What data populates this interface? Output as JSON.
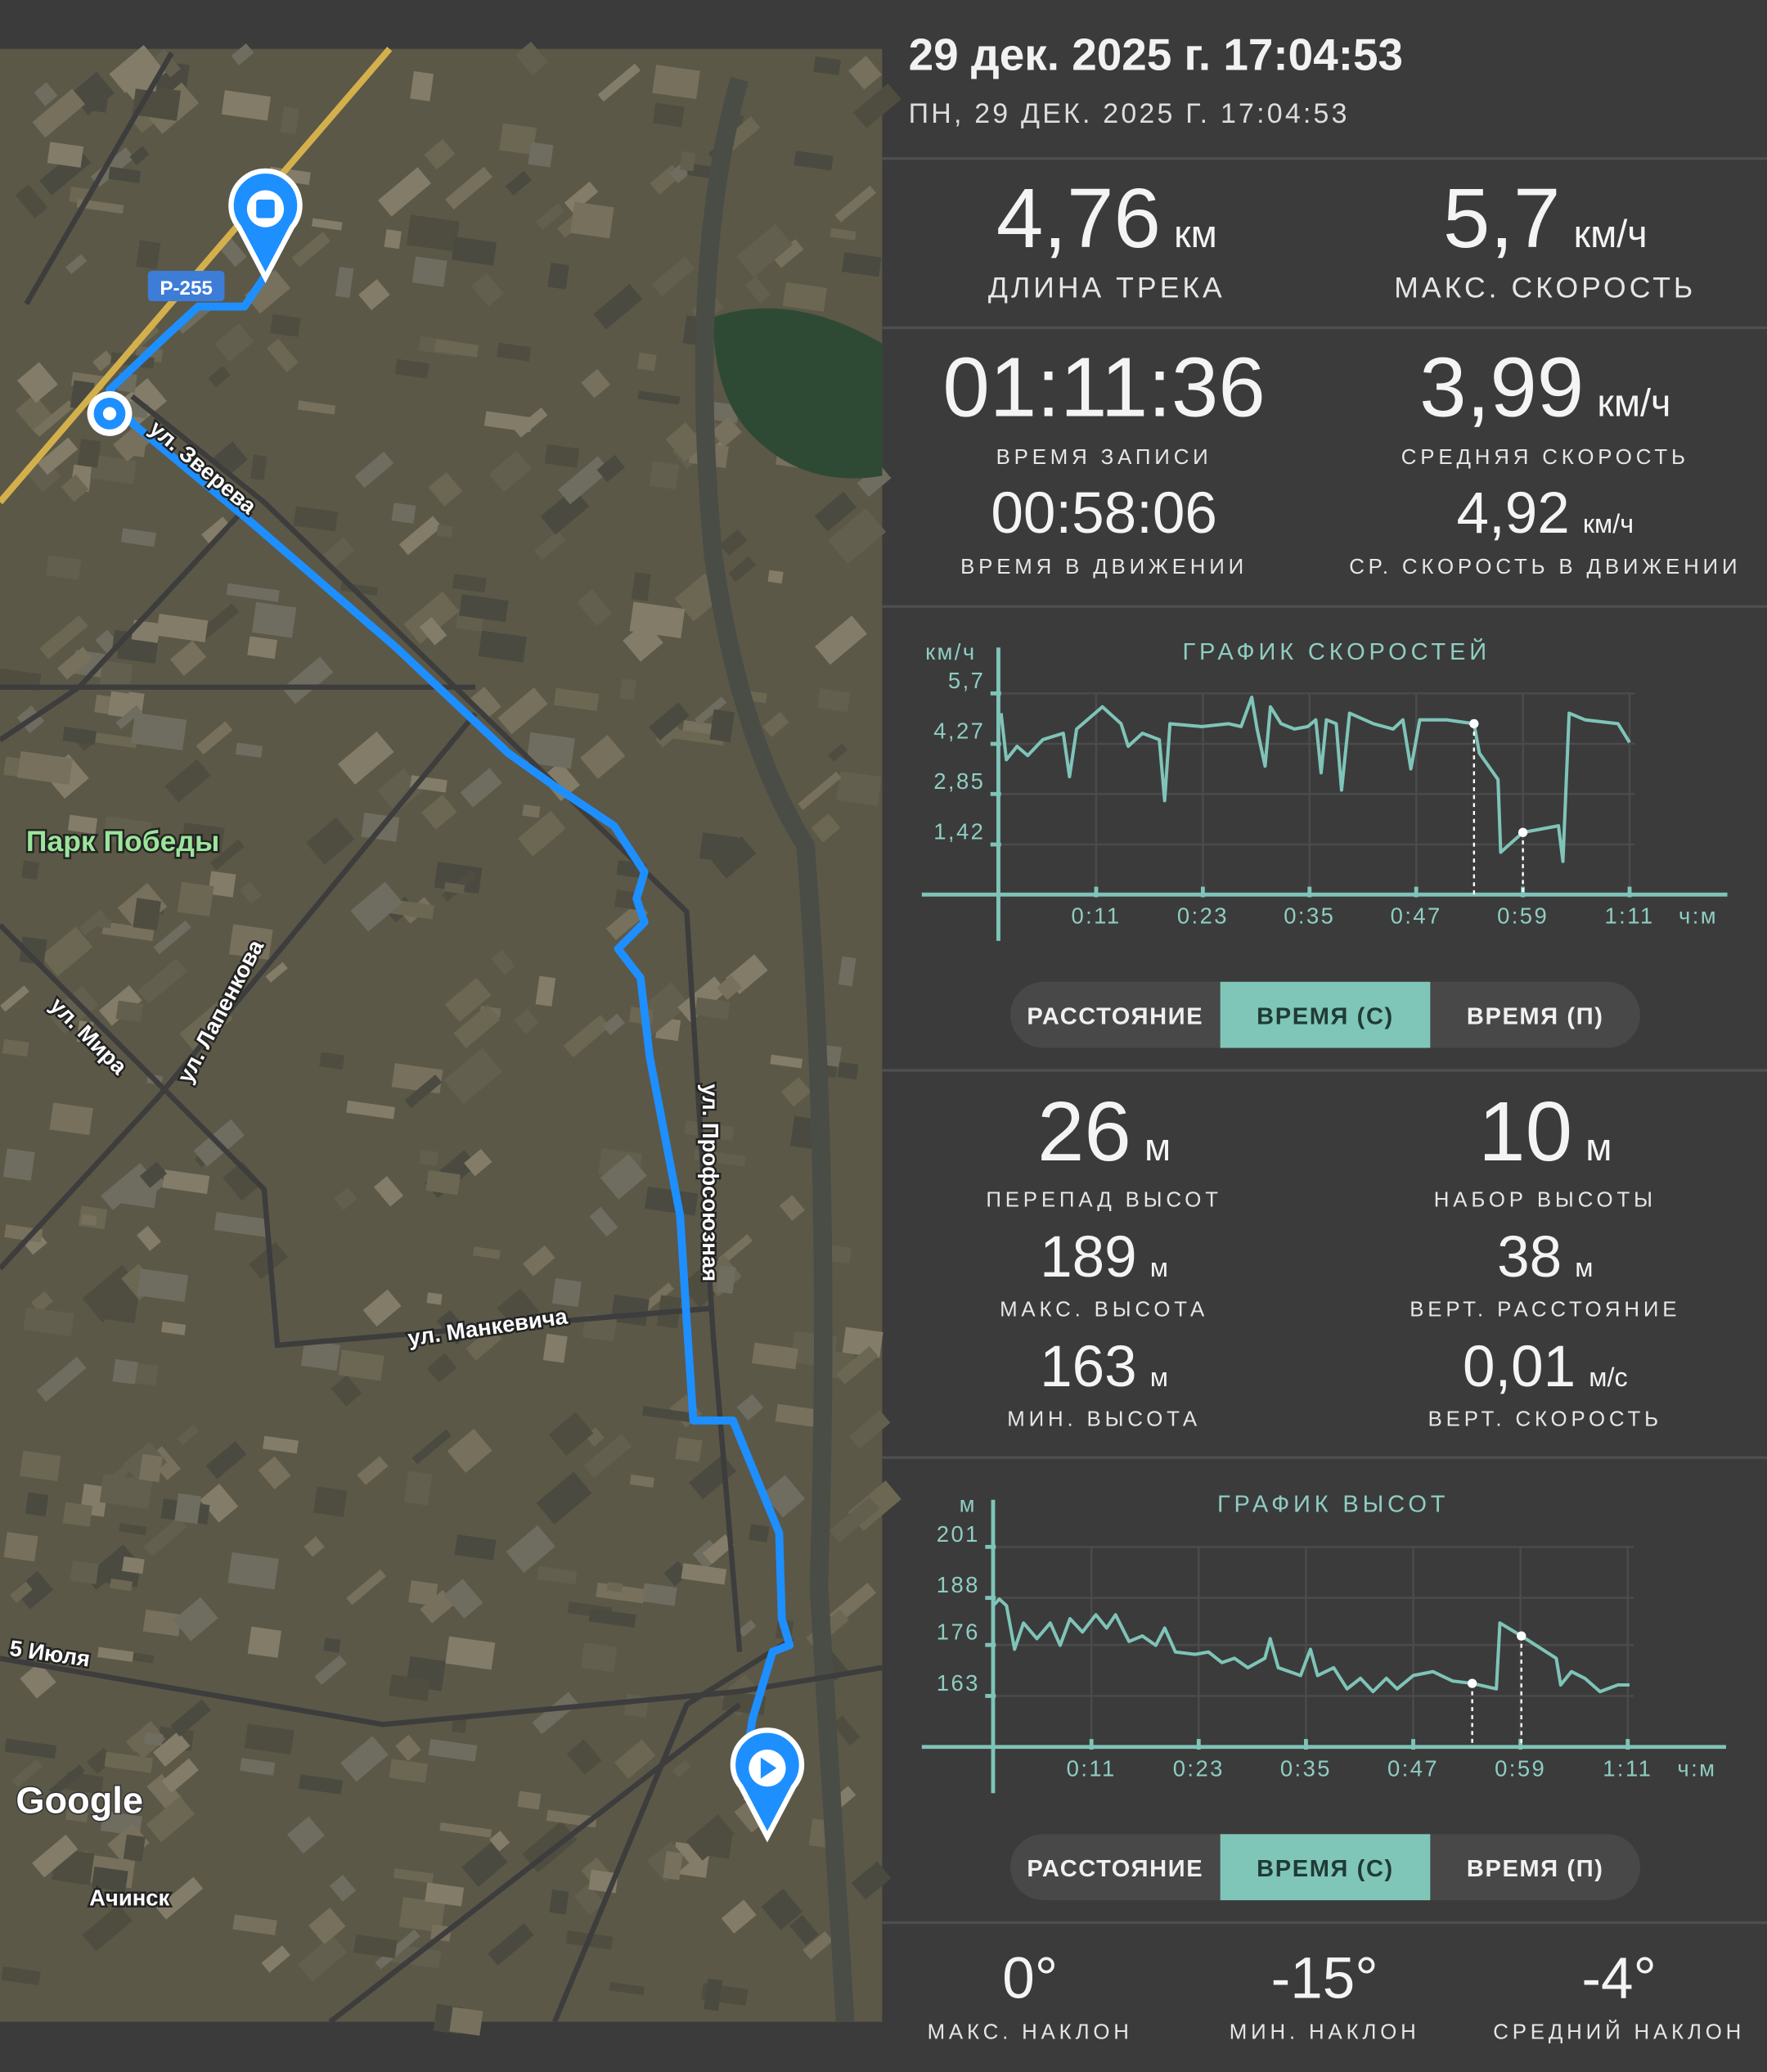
{
  "header": {
    "title": "29 дек. 2025 г. 17:04:53",
    "subtitle": "ПН, 29 ДЕК. 2025 Г. 17:04:53"
  },
  "summary": [
    {
      "value": "4,76",
      "unit": "км",
      "label": "ДЛИНА ТРЕКА"
    },
    {
      "value": "5,7",
      "unit": "км/ч",
      "label": "МАКС. СКОРОСТЬ"
    }
  ],
  "time_stats": [
    {
      "value": "01:11:36",
      "label": "ВРЕМЯ ЗАПИСИ"
    },
    {
      "value": "3,99",
      "unit": "км/ч",
      "label": "СРЕДНЯЯ СКОРОСТЬ"
    },
    {
      "value": "00:58:06",
      "label": "ВРЕМЯ В ДВИЖЕНИИ"
    },
    {
      "value": "4,92",
      "unit": "км/ч",
      "label": "СР. СКОРОСТЬ В ДВИЖЕНИИ"
    }
  ],
  "altitude_stats": [
    {
      "value": "26",
      "unit": "м",
      "label": "ПЕРЕПАД ВЫСОТ"
    },
    {
      "value": "10",
      "unit": "м",
      "label": "НАБОР ВЫСОТЫ"
    },
    {
      "value": "189",
      "unit": "м",
      "label": "МАКС. ВЫСОТА"
    },
    {
      "value": "38",
      "unit": "м",
      "label": "ВЕРТ. РАССТОЯНИЕ"
    },
    {
      "value": "163",
      "unit": "м",
      "label": "МИН. ВЫСОТА"
    },
    {
      "value": "0,01",
      "unit": "м/с",
      "label": "ВЕРТ. СКОРОСТЬ"
    }
  ],
  "slope_stats": [
    {
      "value": "0°",
      "label": "МАКС. НАКЛОН"
    },
    {
      "value": "-15°",
      "label": "МИН. НАКЛОН"
    },
    {
      "value": "-4°",
      "label": "СРЕДНИЙ НАКЛОН"
    }
  ],
  "chart_data": [
    {
      "type": "line",
      "title": "ГРАФИК СКОРОСТЕЙ",
      "y_label": "км/ч",
      "x_label": "ч:м",
      "color": "#7fc4b8",
      "grid": true,
      "x": [
        0.3,
        0.9,
        2.1,
        3.3,
        5.0,
        7.3,
        8.0,
        8.8,
        11.7,
        13.8,
        14.6,
        16.2,
        18.1,
        18.7,
        19.3,
        22.9,
        25.9,
        27.3,
        28.5,
        29.1,
        30.0,
        30.6,
        31.8,
        33.3,
        34.8,
        35.7,
        36.3,
        36.9,
        38.0,
        38.6,
        39.5,
        42.2,
        44.4,
        45.5,
        46.4,
        47.4,
        50.4,
        53.5,
        54.1,
        56.2,
        56.5,
        59.0,
        63.0,
        63.5,
        64.2,
        66.0,
        69.7,
        71.0
      ],
      "values": [
        5.14,
        3.82,
        4.2,
        3.94,
        4.39,
        4.57,
        3.34,
        4.69,
        5.32,
        4.84,
        4.2,
        4.57,
        4.39,
        2.66,
        4.84,
        4.76,
        4.84,
        4.76,
        5.59,
        4.69,
        3.64,
        5.32,
        4.84,
        4.69,
        4.76,
        4.95,
        3.45,
        4.95,
        4.84,
        2.96,
        5.14,
        4.84,
        4.69,
        4.95,
        3.56,
        4.95,
        4.95,
        4.84,
        4.01,
        3.26,
        1.2,
        1.76,
        1.95,
        0.94,
        5.14,
        4.95,
        4.84,
        4.31
      ],
      "xlim": [
        0,
        82
      ],
      "ylim": [
        0,
        7
      ],
      "xticks": [
        {
          "value": 11,
          "label": "0:11"
        },
        {
          "value": 23,
          "label": "0:23"
        },
        {
          "value": 35,
          "label": "0:35"
        },
        {
          "value": 47,
          "label": "0:47"
        },
        {
          "value": 59,
          "label": "0:59"
        },
        {
          "value": 71,
          "label": "1:11"
        }
      ],
      "yticks": [
        {
          "value": 1.42,
          "label": "1,42"
        },
        {
          "value": 2.85,
          "label": "2,85"
        },
        {
          "value": 4.27,
          "label": "4,27"
        },
        {
          "value": 5.7,
          "label": "5,7"
        }
      ],
      "modes": [
        "РАССТОЯНИЕ",
        "ВРЕМЯ (С)",
        "ВРЕМЯ (П)"
      ],
      "active_mode": 1
    },
    {
      "type": "line",
      "title": "ГРАФИК ВЫСОТ",
      "y_label": "м",
      "x_label": "ч:м",
      "color": "#7fc4b8",
      "grid": true,
      "x": [
        0,
        0.7,
        1.5,
        2.4,
        3.4,
        4.9,
        6.4,
        7.5,
        8.6,
        10.0,
        11.5,
        12.7,
        13.7,
        15.2,
        16.7,
        18.2,
        19.2,
        20.4,
        22.6,
        24.1,
        25.6,
        27.0,
        28.5,
        30.4,
        31.0,
        31.9,
        34.4,
        35.5,
        36.3,
        38.1,
        39.6,
        41.1,
        42.5,
        44.0,
        45.2,
        47.0,
        49.2,
        51.4,
        53.6,
        56.3,
        56.7,
        59.1,
        63.0,
        63.5,
        64.7,
        66.2,
        67.9,
        69.9,
        71.2
      ],
      "values": [
        186.0,
        187.7,
        186.0,
        174.9,
        181.6,
        177.6,
        181.6,
        175.9,
        182.7,
        179.3,
        183.7,
        180.3,
        183.7,
        176.9,
        178.3,
        175.9,
        180.3,
        174.2,
        173.6,
        174.2,
        171.5,
        172.6,
        170.2,
        172.6,
        177.6,
        170.2,
        168.2,
        174.9,
        168.2,
        170.2,
        164.8,
        167.5,
        164.1,
        167.5,
        164.8,
        168.2,
        169.2,
        166.8,
        166.2,
        164.8,
        181.6,
        178.3,
        172.6,
        165.8,
        169.2,
        167.5,
        164.1,
        165.8,
        165.8
      ],
      "xlim": [
        0,
        82
      ],
      "ylim": [
        150,
        213
      ],
      "xticks": [
        {
          "value": 11,
          "label": "0:11"
        },
        {
          "value": 23,
          "label": "0:23"
        },
        {
          "value": 35,
          "label": "0:35"
        },
        {
          "value": 47,
          "label": "0:47"
        },
        {
          "value": 59,
          "label": "0:59"
        },
        {
          "value": 71,
          "label": "1:11"
        }
      ],
      "yticks": [
        163,
        176,
        188,
        201
      ],
      "modes": [
        "РАССТОЯНИЕ",
        "ВРЕМЯ (С)",
        "ВРЕМЯ (П)"
      ],
      "active_mode": 1
    }
  ],
  "map": {
    "road_badge": "Р-255",
    "logo": "Google",
    "labels": [
      "ул. Зверева",
      "Парк Победы",
      "ул. Мира",
      "ул. Лапенкова",
      "ул. Профсоюзная",
      "ул. Манкевича",
      "5 Июля",
      "Ачинск"
    ]
  }
}
